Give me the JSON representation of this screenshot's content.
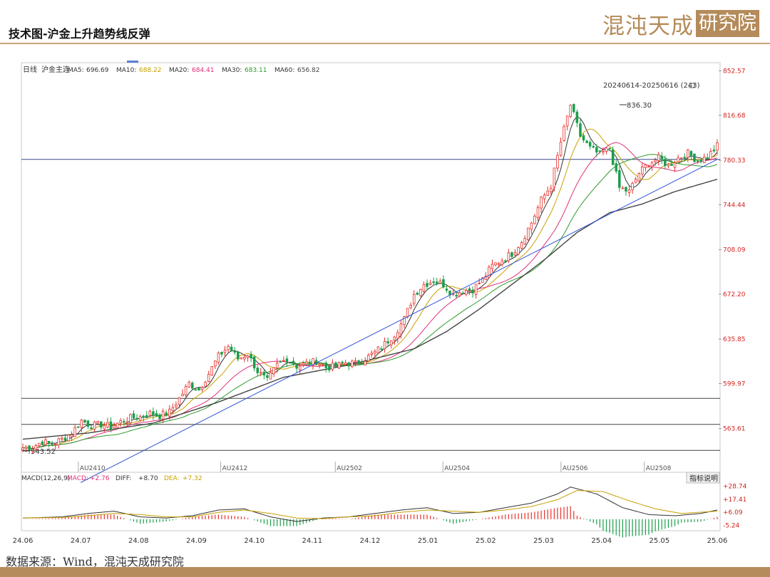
{
  "header": {
    "title": "技术图-沪金上升趋势线反弹",
    "brand_text": "混沌天成",
    "brand_box": "研究院"
  },
  "source_note": "数据来源：Wind，混沌天成研究院",
  "chart_data": {
    "type": "candlestick",
    "period_label": "日线",
    "symbol": "沪金主连",
    "ma_legend": [
      {
        "label": "MA5:",
        "value": "696.69",
        "color": "#333333"
      },
      {
        "label": "MA10:",
        "value": "688.22",
        "color": "#c8a000"
      },
      {
        "label": "MA20:",
        "value": "684.41",
        "color": "#e0307a"
      },
      {
        "label": "MA30:",
        "value": "683.11",
        "color": "#2e9a2e"
      },
      {
        "label": "MA60:",
        "value": "656.82",
        "color": "#444444"
      }
    ],
    "range_label": "20240614-20250616 (243)",
    "y_ticks": [
      "852.57",
      "816.68",
      "780.33",
      "744.44",
      "708.09",
      "672.20",
      "635.85",
      "599.97",
      "563.61"
    ],
    "ylim": [
      530,
      858
    ],
    "high_marker": "836.30",
    "low_marker": "543.52",
    "contract_labels": [
      "AU2410",
      "AU2412",
      "AU2502",
      "AU2504",
      "AU2506",
      "AU2508"
    ],
    "x_ticks": [
      "24.06",
      "24.07",
      "24.08",
      "24.09",
      "24.10",
      "24.11",
      "24.12",
      "25.01",
      "25.02",
      "25.03",
      "25.04",
      "25.05",
      "25.06"
    ],
    "horizontal_levels": [
      781,
      588,
      567,
      546
    ],
    "trendline": [
      {
        "date": "24.07",
        "price": 520
      },
      {
        "date": "25.06",
        "price": 781
      }
    ],
    "close_path": [
      [
        0,
        548
      ],
      [
        3,
        549
      ],
      [
        6,
        553
      ],
      [
        9,
        551
      ],
      [
        12,
        555
      ],
      [
        15,
        560
      ],
      [
        18,
        570
      ],
      [
        21,
        566
      ],
      [
        24,
        567
      ],
      [
        27,
        565
      ],
      [
        30,
        569
      ],
      [
        33,
        572
      ],
      [
        36,
        573
      ],
      [
        39,
        576
      ],
      [
        42,
        574
      ],
      [
        45,
        577
      ],
      [
        48,
        588
      ],
      [
        51,
        600
      ],
      [
        54,
        595
      ],
      [
        57,
        608
      ],
      [
        60,
        622
      ],
      [
        63,
        630
      ],
      [
        66,
        620
      ],
      [
        69,
        624
      ],
      [
        72,
        610
      ],
      [
        75,
        602
      ],
      [
        78,
        615
      ],
      [
        81,
        620
      ],
      [
        84,
        614
      ],
      [
        87,
        616
      ],
      [
        90,
        618
      ],
      [
        93,
        613
      ],
      [
        96,
        614
      ],
      [
        99,
        617
      ],
      [
        102,
        616
      ],
      [
        105,
        620
      ],
      [
        108,
        625
      ],
      [
        111,
        632
      ],
      [
        114,
        640
      ],
      [
        117,
        652
      ],
      [
        120,
        672
      ],
      [
        123,
        680
      ],
      [
        126,
        683
      ],
      [
        129,
        680
      ],
      [
        132,
        672
      ],
      [
        135,
        675
      ],
      [
        138,
        676
      ],
      [
        141,
        684
      ],
      [
        144,
        695
      ],
      [
        147,
        700
      ],
      [
        150,
        705
      ],
      [
        153,
        715
      ],
      [
        156,
        730
      ],
      [
        159,
        748
      ],
      [
        162,
        760
      ],
      [
        165,
        795
      ],
      [
        168,
        825
      ],
      [
        171,
        800
      ],
      [
        174,
        790
      ],
      [
        177,
        785
      ],
      [
        180,
        790
      ],
      [
        183,
        758
      ],
      [
        186,
        755
      ],
      [
        189,
        770
      ],
      [
        192,
        778
      ],
      [
        195,
        782
      ],
      [
        198,
        776
      ],
      [
        201,
        782
      ],
      [
        204,
        786
      ],
      [
        207,
        780
      ],
      [
        210,
        783
      ],
      [
        213,
        792
      ]
    ],
    "ma60_path": [
      [
        0,
        555
      ],
      [
        20,
        560
      ],
      [
        40,
        568
      ],
      [
        60,
        585
      ],
      [
        80,
        605
      ],
      [
        100,
        615
      ],
      [
        120,
        628
      ],
      [
        130,
        642
      ],
      [
        140,
        660
      ],
      [
        150,
        680
      ],
      [
        160,
        700
      ],
      [
        170,
        722
      ],
      [
        180,
        738
      ],
      [
        190,
        745
      ],
      [
        200,
        755
      ],
      [
        213,
        765
      ]
    ],
    "macd": {
      "label": "MACD(12,26,9)",
      "items": [
        {
          "label": "MACD:",
          "value": "+2.76",
          "color": "#e0307a"
        },
        {
          "label": "DIFF:",
          "value": "+8.70",
          "color": "#333333"
        },
        {
          "label": "DEA:",
          "value": "+7.32",
          "color": "#c8a000"
        }
      ],
      "y_ticks": [
        "+28.74",
        "+17.41",
        "+6.09",
        "-5.24"
      ],
      "ylim": [
        -10,
        34
      ],
      "diff_path": [
        [
          0,
          1
        ],
        [
          12,
          2
        ],
        [
          20,
          5
        ],
        [
          28,
          7
        ],
        [
          36,
          2
        ],
        [
          44,
          1
        ],
        [
          52,
          3
        ],
        [
          60,
          8
        ],
        [
          68,
          9
        ],
        [
          76,
          2
        ],
        [
          84,
          -2
        ],
        [
          92,
          1
        ],
        [
          100,
          2
        ],
        [
          108,
          5
        ],
        [
          116,
          8
        ],
        [
          124,
          10
        ],
        [
          132,
          5
        ],
        [
          140,
          6
        ],
        [
          148,
          10
        ],
        [
          156,
          14
        ],
        [
          164,
          22
        ],
        [
          168,
          28
        ],
        [
          176,
          22
        ],
        [
          184,
          10
        ],
        [
          192,
          4
        ],
        [
          200,
          3
        ],
        [
          208,
          5
        ],
        [
          213,
          8
        ]
      ],
      "dea_path": [
        [
          0,
          1
        ],
        [
          12,
          1.5
        ],
        [
          20,
          3
        ],
        [
          28,
          5
        ],
        [
          36,
          4
        ],
        [
          44,
          2
        ],
        [
          52,
          2
        ],
        [
          60,
          6
        ],
        [
          68,
          8
        ],
        [
          76,
          5
        ],
        [
          84,
          1
        ],
        [
          92,
          0.5
        ],
        [
          100,
          2
        ],
        [
          108,
          3
        ],
        [
          116,
          6
        ],
        [
          124,
          8
        ],
        [
          132,
          7
        ],
        [
          140,
          6
        ],
        [
          148,
          8
        ],
        [
          156,
          11
        ],
        [
          164,
          17
        ],
        [
          170,
          25
        ],
        [
          178,
          24
        ],
        [
          186,
          16
        ],
        [
          194,
          9
        ],
        [
          202,
          5
        ],
        [
          213,
          7
        ]
      ]
    },
    "indicator_button": "指标说明"
  }
}
